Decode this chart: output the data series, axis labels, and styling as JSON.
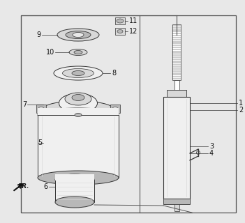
{
  "bg_color": "#e8e8e8",
  "border_color": "#555555",
  "outline_color": "#333333",
  "fill_light": "#f0f0f0",
  "fill_mid": "#d8d8d8",
  "fill_dark": "#b8b8b8",
  "white": "#ffffff"
}
